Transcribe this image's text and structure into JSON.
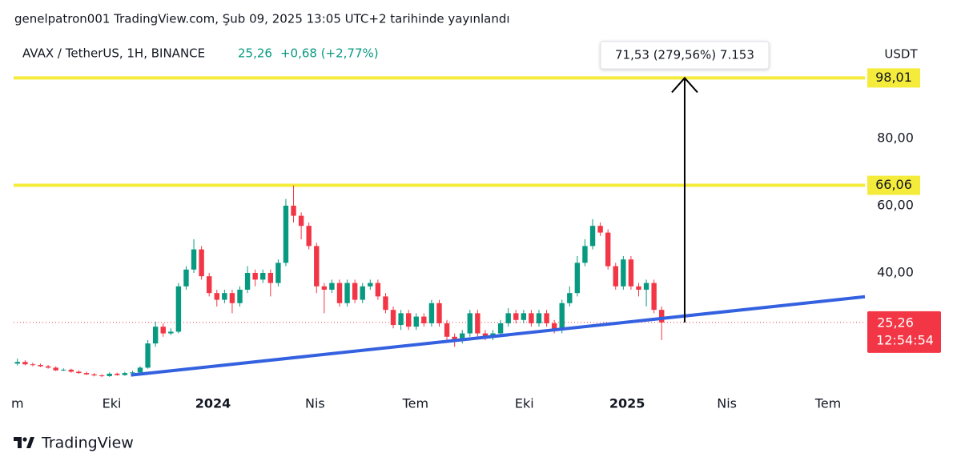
{
  "chart_data": {
    "type": "candlestick",
    "published": "genelpatron001 TradingView.com, Şub 09, 2025 13:05 UTC+2 tarihinde yayınlandı",
    "symbol": "AVAX / TetherUS, 1H, BINANCE",
    "change_text": "+0,68 (+2,77%)",
    "currency": "USDT",
    "last_price": {
      "value": 25.26,
      "label": "25,26"
    },
    "countdown": "12:54:54",
    "measure_label": "71,53 (279,56%) 7.153",
    "brand": "TradingView",
    "up_color": "#089981",
    "down_color": "#f23645",
    "xlim": [
      -0.5,
      110.5
    ],
    "ylim": [
      5.7,
      109.3
    ],
    "yticks": [
      {
        "value": 40,
        "label": "40,00"
      },
      {
        "value": 60,
        "label": "60,00"
      },
      {
        "value": 80,
        "label": "80,00"
      }
    ],
    "xticks": [
      {
        "value": 0,
        "label": "m"
      },
      {
        "value": 12.3,
        "label": "Eki"
      },
      {
        "value": 25.5,
        "label": "2024"
      },
      {
        "value": 38.8,
        "label": "Nis"
      },
      {
        "value": 51.9,
        "label": "Tem"
      },
      {
        "value": 66.1,
        "label": "Eki"
      },
      {
        "value": 79.5,
        "label": "2025"
      },
      {
        "value": 92.5,
        "label": "Nis"
      },
      {
        "value": 105.7,
        "label": "Tem"
      }
    ],
    "levels": [
      {
        "value": 98.01,
        "label": "98,01"
      },
      {
        "value": 66.06,
        "label": "66,06"
      }
    ],
    "level_color": "#f5eb3b",
    "trend_line": {
      "x": [
        14.8,
        110.5
      ],
      "y": [
        9.6,
        32.9
      ],
      "color": "#3461e0"
    },
    "arrow": {
      "x": 87,
      "y": [
        25.26,
        98.01
      ]
    },
    "open": [
      13,
      13.5,
      12.8,
      12.6,
      12.2,
      11.8,
      11,
      11.2,
      10.6,
      10.2,
      9.8,
      9.5,
      9.3,
      10,
      9.6,
      10.2,
      10.4,
      11.8,
      19,
      24,
      22,
      22.5,
      36,
      41,
      47,
      39,
      34,
      32,
      34,
      31,
      35,
      40,
      38,
      40,
      37,
      43,
      60,
      57,
      54,
      48,
      36,
      35,
      37,
      31,
      37,
      32,
      36,
      37,
      33,
      29,
      24.5,
      28,
      24,
      27,
      25,
      31,
      25,
      21,
      20,
      22,
      28,
      22,
      21,
      22,
      25,
      28,
      26,
      28,
      25,
      28,
      25,
      23,
      31,
      34,
      43,
      48,
      54,
      52,
      42,
      36,
      44,
      36,
      35,
      37,
      29
    ],
    "high": [
      14.5,
      14,
      13.3,
      13,
      12.6,
      12.2,
      11.6,
      11.5,
      11,
      10.6,
      10.2,
      9.9,
      10.4,
      10.3,
      10.6,
      10.9,
      12.2,
      20,
      25.5,
      25,
      23.5,
      37,
      42,
      50,
      48,
      40,
      35,
      35,
      35,
      36,
      42,
      41,
      41,
      41,
      44,
      62,
      66,
      58,
      55,
      49,
      37,
      38,
      38,
      38,
      38,
      37,
      38,
      38,
      34,
      30,
      29,
      29,
      28,
      28,
      32,
      32,
      26,
      22,
      23,
      29,
      29,
      23,
      23,
      26,
      29.5,
      29,
      29,
      29,
      29,
      29,
      26,
      32,
      36,
      45,
      50,
      56,
      55,
      53,
      43,
      45,
      45,
      37,
      38,
      38,
      30
    ],
    "low": [
      12.5,
      12.5,
      12.2,
      12,
      11.5,
      10.8,
      10.8,
      10.3,
      10,
      9.6,
      9.2,
      9,
      9.1,
      9.4,
      9.4,
      10,
      10.2,
      11.5,
      18,
      21,
      21.5,
      22,
      35,
      40,
      38,
      33,
      30,
      31,
      28,
      30,
      34,
      36,
      37,
      33,
      36,
      42,
      55,
      50,
      47,
      34,
      28,
      34,
      30,
      30,
      31,
      31,
      35,
      32,
      28,
      23.5,
      23,
      23,
      23,
      24,
      24,
      24,
      20,
      18,
      19,
      21,
      21,
      20,
      20,
      21,
      24,
      25,
      25,
      24,
      24,
      24,
      22,
      22,
      30,
      33,
      42,
      47,
      51,
      41,
      35,
      35,
      35,
      33,
      30,
      28,
      20
    ],
    "close": [
      13.5,
      12.8,
      12.6,
      12.2,
      11.8,
      11,
      11.2,
      10.6,
      10.2,
      9.8,
      9.5,
      9.3,
      10,
      9.6,
      10.2,
      10.4,
      11.8,
      19,
      24,
      22,
      22.5,
      36,
      41,
      47,
      39,
      34,
      32,
      34,
      31,
      35,
      40,
      38,
      40,
      37,
      43,
      60,
      57,
      54,
      48,
      36,
      35,
      37,
      31,
      37,
      32,
      36,
      37,
      33,
      29,
      24.5,
      28,
      24,
      27,
      25,
      31,
      25,
      21,
      20,
      22,
      28,
      22,
      21,
      22,
      25,
      28,
      26,
      28,
      25,
      28,
      25,
      23,
      31,
      34,
      43,
      48,
      54,
      52,
      42,
      36,
      44,
      36,
      35,
      37,
      29,
      25.26
    ]
  }
}
